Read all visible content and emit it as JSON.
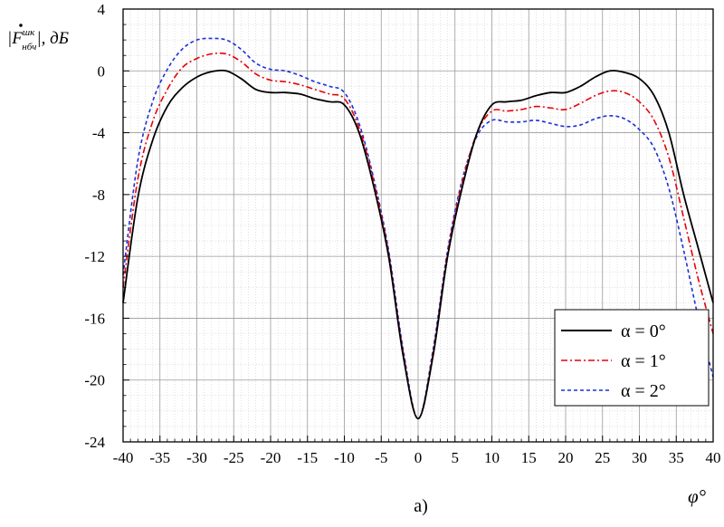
{
  "chart_data": {
    "type": "line",
    "ylabel": "|Ḟ^шк_нбч|, дБ",
    "ylabel_parts": {
      "base": "|F",
      "sup": "шк",
      "sub": "нбч",
      "tail": "|, дБ"
    },
    "xlabel": "φ°",
    "caption": "а)",
    "xlim": [
      -40,
      40
    ],
    "ylim": [
      -24,
      4
    ],
    "xticks": [
      -40,
      -35,
      -30,
      -25,
      -20,
      -15,
      -10,
      -5,
      0,
      5,
      10,
      15,
      20,
      25,
      30,
      35,
      40
    ],
    "yticks": [
      4,
      0,
      -4,
      -8,
      -12,
      -16,
      -20,
      -24
    ],
    "major_grid": true,
    "minor_grid": true,
    "legend_position": "bottom-right",
    "x": [
      -40,
      -38,
      -36,
      -34,
      -32,
      -30,
      -28,
      -26,
      -24,
      -22,
      -20,
      -18,
      -16,
      -14,
      -12,
      -10,
      -8,
      -6,
      -4,
      -2,
      0,
      2,
      4,
      6,
      8,
      10,
      12,
      14,
      16,
      18,
      20,
      22,
      24,
      26,
      28,
      30,
      32,
      34,
      36,
      38,
      40
    ],
    "series": [
      {
        "name": "α = 0°",
        "color": "#000000",
        "dash": "solid",
        "values": [
          -15,
          -8.2,
          -4.5,
          -2.3,
          -1.1,
          -0.4,
          -0.05,
          0,
          -0.5,
          -1.2,
          -1.4,
          -1.4,
          -1.5,
          -1.8,
          -2.0,
          -2.2,
          -4.0,
          -7.5,
          -12.0,
          -18.5,
          -22.5,
          -18.5,
          -12.0,
          -7.5,
          -4.0,
          -2.2,
          -2.0,
          -1.9,
          -1.6,
          -1.4,
          -1.4,
          -1.0,
          -0.4,
          0,
          -0.1,
          -0.5,
          -1.6,
          -4.0,
          -8.0,
          -11.5,
          -15.0
        ]
      },
      {
        "name": "α = 1°",
        "color": "#e8000b",
        "dash": "dashdot",
        "values": [
          -14,
          -7.0,
          -3.3,
          -1.2,
          0.2,
          0.8,
          1.1,
          1.1,
          0.6,
          -0.2,
          -0.6,
          -0.7,
          -0.9,
          -1.2,
          -1.5,
          -1.8,
          -3.7,
          -7.2,
          -11.8,
          -18.3,
          -22.5,
          -18.3,
          -11.8,
          -7.2,
          -4.0,
          -2.6,
          -2.6,
          -2.5,
          -2.3,
          -2.4,
          -2.5,
          -2.1,
          -1.6,
          -1.3,
          -1.4,
          -2.0,
          -3.2,
          -5.6,
          -9.5,
          -13.5,
          -17.0
        ]
      },
      {
        "name": "α = 2°",
        "color": "#1f2fd6",
        "dash": "dashed",
        "values": [
          -13.2,
          -5.8,
          -2.0,
          0.1,
          1.4,
          2.0,
          2.1,
          2.0,
          1.4,
          0.5,
          0.1,
          0.0,
          -0.3,
          -0.7,
          -1.0,
          -1.4,
          -3.4,
          -7.0,
          -11.6,
          -18.1,
          -22.5,
          -18.1,
          -11.6,
          -7.0,
          -4.2,
          -3.2,
          -3.3,
          -3.3,
          -3.2,
          -3.4,
          -3.6,
          -3.5,
          -3.1,
          -2.9,
          -3.1,
          -3.8,
          -5.0,
          -7.6,
          -11.6,
          -16.0,
          -19.8
        ]
      }
    ]
  }
}
